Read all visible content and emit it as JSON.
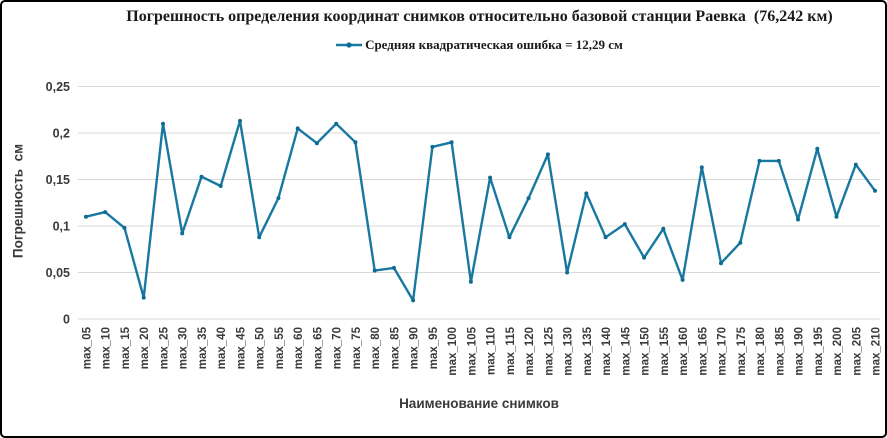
{
  "chart_data": {
    "type": "line",
    "title": "Погрешность определения координат снимков относительно базовой станции Раевка  (76,242 км)",
    "legend": {
      "label": "Средняя квадратическая ошибка = 12,29 см",
      "position": "top"
    },
    "xlabel": "Наименование снимков",
    "ylabel": "Погрешность  см",
    "categories": [
      "max_05",
      "max_10",
      "max_15",
      "max_20",
      "max_25",
      "max_30",
      "max_35",
      "max_40",
      "max_45",
      "max_50",
      "max_55",
      "max_60",
      "max_65",
      "max_70",
      "max_75",
      "max_80",
      "max_85",
      "max_90",
      "max_95",
      "max_100",
      "max_105",
      "max_110",
      "max_115",
      "max_120",
      "max_125",
      "max_130",
      "max_135",
      "max_140",
      "max_145",
      "max_150",
      "max_155",
      "max_160",
      "max_165",
      "max_170",
      "max_175",
      "max_180",
      "max_185",
      "max_190",
      "max_195",
      "max_200",
      "max_205",
      "max_210"
    ],
    "series": [
      {
        "name": "Средняя квадратическая ошибка = 12,29 см",
        "values": [
          0.11,
          0.115,
          0.098,
          0.023,
          0.21,
          0.092,
          0.153,
          0.143,
          0.213,
          0.088,
          0.13,
          0.205,
          0.189,
          0.21,
          0.19,
          0.052,
          0.055,
          0.02,
          0.185,
          0.19,
          0.04,
          0.152,
          0.088,
          0.13,
          0.177,
          0.05,
          0.135,
          0.088,
          0.102,
          0.066,
          0.097,
          0.042,
          0.163,
          0.06,
          0.082,
          0.17,
          0.17,
          0.107,
          0.183,
          0.11,
          0.166,
          0.138
        ]
      }
    ],
    "ylim": [
      0,
      0.25
    ],
    "ytick_step": 0.05,
    "ytick_labels": [
      "0",
      "0,05",
      "0,1",
      "0,15",
      "0,2",
      "0,25"
    ],
    "grid": "horizontal",
    "colors": {
      "line": "#1878a0",
      "marker": "#0e6b91",
      "grid": "#d9d9d9",
      "tick_text": "#3a3a3a",
      "title_text": "#1a1a1a",
      "border": "#000000",
      "background": "#ffffff"
    }
  }
}
